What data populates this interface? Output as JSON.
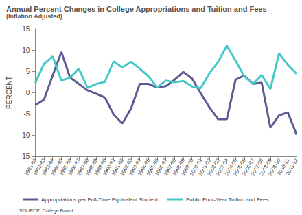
{
  "chart_data": {
    "type": "line",
    "title": "Annual Percent Changes in College Appropriations and Tuition and Fees",
    "subtitle": "(Inflation Adjusted)",
    "y_label": "PERCENT",
    "source": "SOURCE: College Board.",
    "categories": [
      "1981-82",
      "1982-83",
      "1983-84",
      "1984-85",
      "1985-86",
      "1986-87",
      "1987-88",
      "1988-89",
      "1989-90",
      "1990-91",
      "1991-92",
      "1992-93",
      "1993-94",
      "1994-95",
      "1995-96",
      "1996-97",
      "1997-98",
      "1998-99",
      "1999-00",
      "2000-01",
      "2001-02",
      "2002-03",
      "2003-04",
      "2004-05",
      "2005-06",
      "2006-07",
      "2007-08",
      "2008-09",
      "2009-10",
      "2010-11",
      "2011-12"
    ],
    "series": [
      {
        "name": "Appropriations per Full-Time Equivalent Student",
        "color": "#5c5a93",
        "values": [
          -3,
          -1.7,
          4,
          9.5,
          3.5,
          2,
          0.5,
          -0.3,
          -1.2,
          -5.2,
          -7.3,
          -3.8,
          2,
          2,
          1.2,
          1.5,
          3,
          4.8,
          3.3,
          -0.2,
          -3.5,
          -6.3,
          -6.3,
          3,
          4,
          2,
          2.3,
          -8.3,
          -5.4,
          -4.7,
          -9.9
        ]
      },
      {
        "name": "Public Four-Year Tuition and Fees",
        "color": "#45c8c6",
        "values": [
          2.2,
          6.7,
          8.5,
          2.8,
          3.5,
          5.6,
          1.1,
          2,
          2.5,
          7.3,
          5.9,
          7.2,
          5.6,
          3.8,
          1.2,
          2.8,
          2.4,
          2.7,
          1.4,
          1,
          4.5,
          7.2,
          11,
          7.5,
          3.8,
          2,
          4.1,
          0.8,
          9.2,
          6.5,
          4.4
        ]
      }
    ],
    "ylim": [
      -15,
      15
    ],
    "yticks": [
      -15,
      -10,
      -5,
      0,
      5,
      10,
      15
    ],
    "grid": false,
    "legend": "bottom"
  }
}
